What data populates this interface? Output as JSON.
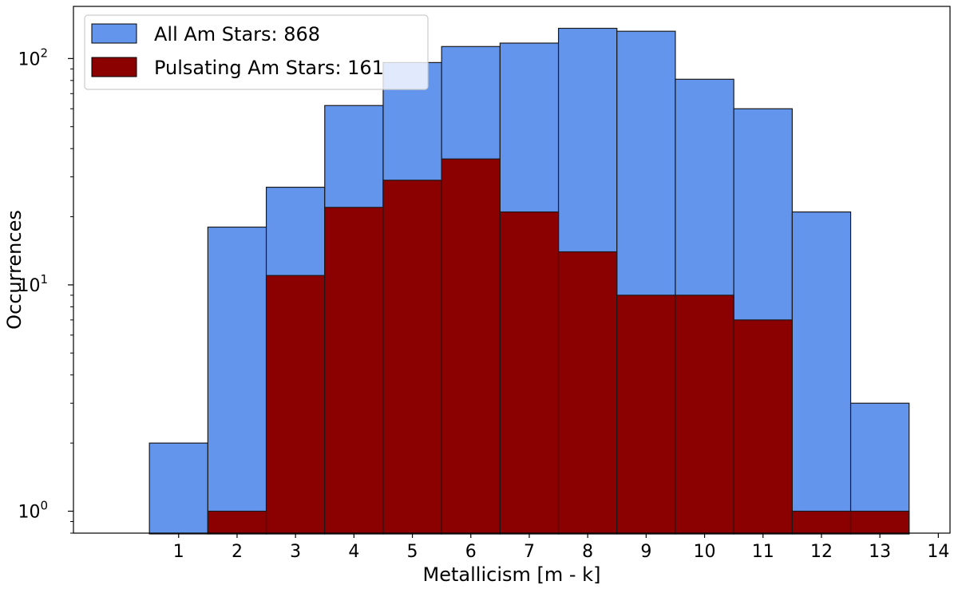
{
  "chart_data": {
    "type": "bar",
    "xlabel": "Metallicism [m - k]",
    "ylabel": "Occurrences",
    "yscale": "log",
    "ylim": [
      0.8,
      170
    ],
    "xlim": [
      -0.8,
      14.2
    ],
    "xticks": [
      1,
      2,
      3,
      4,
      5,
      6,
      7,
      8,
      9,
      10,
      11,
      12,
      13,
      14
    ],
    "yticks": [
      {
        "base": "10",
        "exp": "0",
        "value": 1
      },
      {
        "base": "10",
        "exp": "1",
        "value": 10
      },
      {
        "base": "10",
        "exp": "2",
        "value": 100
      }
    ],
    "legend_position": "top-left",
    "series": [
      {
        "name": "All Am Stars: 868",
        "color": "#6495ED",
        "x": [
          1,
          2,
          3,
          4,
          5,
          6,
          7,
          8,
          9,
          10,
          11,
          12,
          13
        ],
        "values": [
          2,
          18,
          27,
          62,
          96,
          113,
          117,
          136,
          132,
          81,
          60,
          21,
          3
        ]
      },
      {
        "name": "Pulsating Am Stars: 161",
        "color": "#8B0000",
        "x": [
          1,
          2,
          3,
          4,
          5,
          6,
          7,
          8,
          9,
          10,
          11,
          12,
          13
        ],
        "values": [
          null,
          1,
          11,
          22,
          29,
          36,
          21,
          14,
          9,
          9,
          7,
          1,
          1
        ]
      }
    ]
  }
}
